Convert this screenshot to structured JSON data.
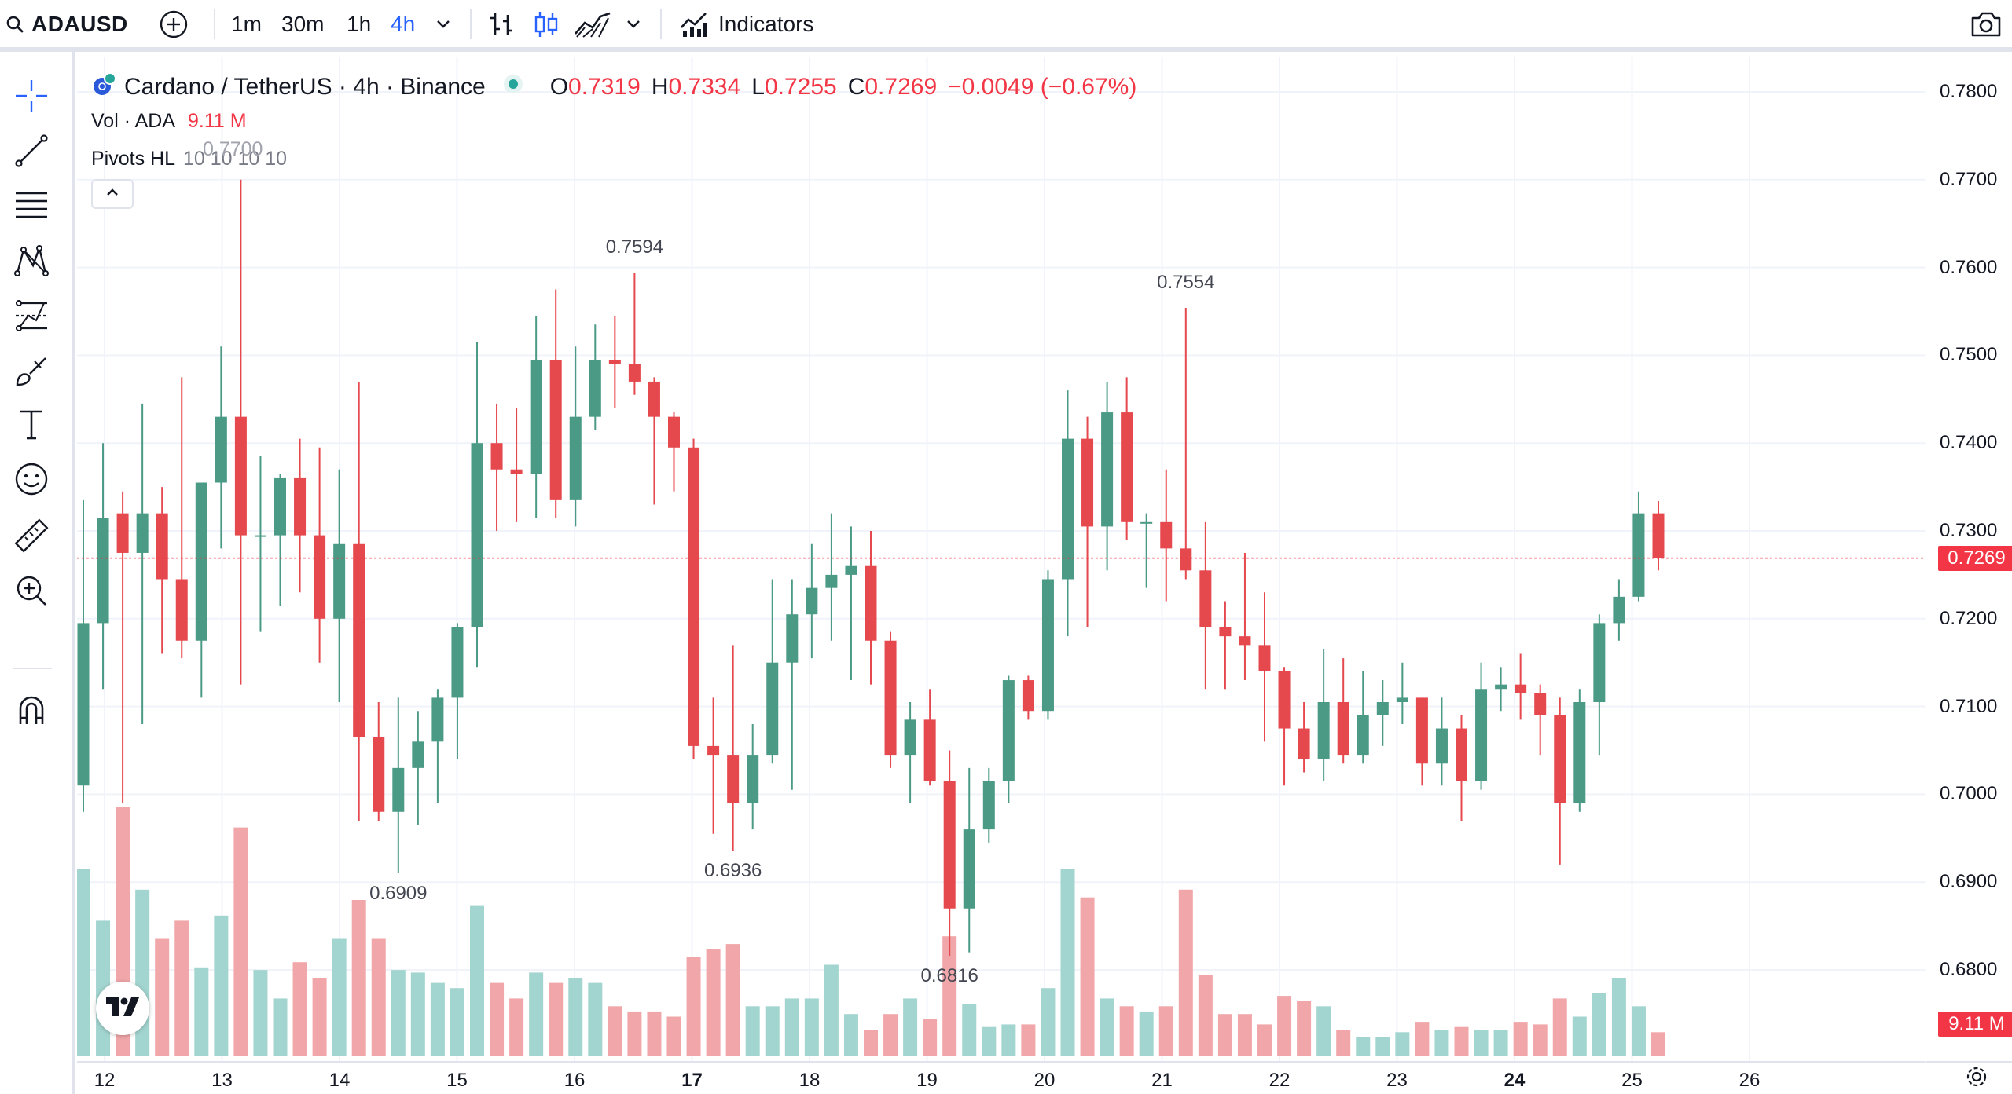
{
  "toolbar": {
    "symbol": "ADAUSD",
    "timeframes": [
      "1m",
      "30m",
      "1h",
      "4h"
    ],
    "active_timeframe": "4h",
    "indicators_label": "Indicators",
    "icons": [
      "search-icon",
      "add-compare-icon",
      "chevron-down-icon",
      "bar-style-icon",
      "candle-style-icon",
      "area-style-icon",
      "chevron-down-icon",
      "indicators-icon",
      "camera-icon"
    ]
  },
  "left_tools": [
    "crosshair-icon",
    "trend-line-icon",
    "fib-levels-icon",
    "pattern-icon",
    "projection-icon",
    "brush-icon",
    "text-icon",
    "emoji-icon",
    "ruler-icon",
    "zoom-in-icon",
    "magnet-icon"
  ],
  "legend": {
    "title": "Cardano / TetherUS · 4h · Binance",
    "o_key": "O",
    "o": "0.7319",
    "h_key": "H",
    "h": "0.7334",
    "l_key": "L",
    "l": "0.7255",
    "c_key": "C",
    "c": "0.7269",
    "change": "−0.0049 (−0.67%)",
    "vol_label": "Vol · ADA",
    "vol_value": "9.11 M",
    "pivots_label": "Pivots HL",
    "pivots_params": "10 10 10 10",
    "pivots_overlap": "0.7700"
  },
  "colors": {
    "up": "#26a69a",
    "up_candle": "#4a9a85",
    "down": "#e5484d",
    "up_vol": "#a3d5d0",
    "down_vol": "#f1a7aa",
    "accent": "#2962ff"
  },
  "chart_data": {
    "type": "candlestick",
    "symbol": "Cardano / TetherUS",
    "interval": "4h",
    "exchange": "Binance",
    "price_axis": [
      "0.7800",
      "0.7700",
      "0.7600",
      "0.7500",
      "0.7400",
      "0.7300",
      "0.7200",
      "0.7100",
      "0.7000",
      "0.6900",
      "0.6800"
    ],
    "ylim": [
      0.677,
      0.783
    ],
    "current_price": "0.7269",
    "current_volume": "9.11 M",
    "date_axis": [
      "12",
      "13",
      "14",
      "15",
      "16",
      "17",
      "18",
      "19",
      "20",
      "21",
      "22",
      "23",
      "24",
      "25",
      "26"
    ],
    "bold_dates": [
      "17",
      "24"
    ],
    "pivots": [
      {
        "label": "0.7594",
        "bar": 28,
        "pos": "high"
      },
      {
        "label": "0.7554",
        "bar": 56,
        "pos": "high"
      },
      {
        "label": "0.6909",
        "bar": 16,
        "pos": "low"
      },
      {
        "label": "0.6936",
        "bar": 33,
        "pos": "low"
      },
      {
        "label": "0.6816",
        "bar": 44,
        "pos": "low"
      }
    ],
    "candles": [
      [
        0.701,
        0.7335,
        0.698,
        0.7195,
        0.72
      ],
      [
        0.7195,
        0.74,
        0.712,
        0.7315,
        0.52
      ],
      [
        0.732,
        0.7345,
        0.699,
        0.7275,
        0.96
      ],
      [
        0.7275,
        0.7445,
        0.708,
        0.732,
        0.64
      ],
      [
        0.732,
        0.735,
        0.716,
        0.7245,
        0.45
      ],
      [
        0.7245,
        0.7475,
        0.7155,
        0.7175,
        0.52
      ],
      [
        0.7175,
        0.7355,
        0.711,
        0.7355,
        0.34
      ],
      [
        0.7355,
        0.751,
        0.728,
        0.743,
        0.54
      ],
      [
        0.743,
        0.77,
        0.7125,
        0.7295,
        0.88
      ],
      [
        0.7295,
        0.7385,
        0.7185,
        0.7295,
        0.33
      ],
      [
        0.7295,
        0.7365,
        0.7215,
        0.736,
        0.22
      ],
      [
        0.736,
        0.7405,
        0.723,
        0.7295,
        0.36
      ],
      [
        0.7295,
        0.7395,
        0.715,
        0.72,
        0.3
      ],
      [
        0.72,
        0.737,
        0.7105,
        0.7285,
        0.45
      ],
      [
        0.7285,
        0.747,
        0.697,
        0.7065,
        0.6
      ],
      [
        0.7065,
        0.7105,
        0.697,
        0.698,
        0.45
      ],
      [
        0.698,
        0.711,
        0.691,
        0.703,
        0.33
      ],
      [
        0.703,
        0.7095,
        0.6965,
        0.706,
        0.32
      ],
      [
        0.706,
        0.712,
        0.699,
        0.711,
        0.28
      ],
      [
        0.711,
        0.7195,
        0.704,
        0.719,
        0.26
      ],
      [
        0.719,
        0.7515,
        0.7145,
        0.74,
        0.58
      ],
      [
        0.74,
        0.7445,
        0.73,
        0.737,
        0.28
      ],
      [
        0.737,
        0.744,
        0.731,
        0.7365,
        0.22
      ],
      [
        0.7365,
        0.7545,
        0.7315,
        0.7495,
        0.32
      ],
      [
        0.7495,
        0.7575,
        0.7315,
        0.7335,
        0.28
      ],
      [
        0.7335,
        0.751,
        0.7305,
        0.743,
        0.3
      ],
      [
        0.743,
        0.7535,
        0.7415,
        0.7495,
        0.28
      ],
      [
        0.7495,
        0.7545,
        0.744,
        0.749,
        0.19
      ],
      [
        0.749,
        0.7594,
        0.7455,
        0.747,
        0.17
      ],
      [
        0.747,
        0.7475,
        0.733,
        0.743,
        0.17
      ],
      [
        0.743,
        0.7435,
        0.7345,
        0.7395,
        0.15
      ],
      [
        0.7395,
        0.7405,
        0.704,
        0.7055,
        0.38
      ],
      [
        0.7055,
        0.711,
        0.6955,
        0.7045,
        0.41
      ],
      [
        0.7045,
        0.717,
        0.6936,
        0.699,
        0.43
      ],
      [
        0.699,
        0.708,
        0.696,
        0.7045,
        0.19
      ],
      [
        0.7045,
        0.7245,
        0.7035,
        0.715,
        0.19
      ],
      [
        0.715,
        0.7245,
        0.7005,
        0.7205,
        0.22
      ],
      [
        0.7205,
        0.7285,
        0.7155,
        0.7235,
        0.22
      ],
      [
        0.7235,
        0.732,
        0.7175,
        0.725,
        0.35
      ],
      [
        0.725,
        0.7305,
        0.713,
        0.726,
        0.16
      ],
      [
        0.726,
        0.73,
        0.7125,
        0.7175,
        0.1
      ],
      [
        0.7175,
        0.7185,
        0.703,
        0.7045,
        0.16
      ],
      [
        0.7045,
        0.7105,
        0.699,
        0.7085,
        0.22
      ],
      [
        0.7085,
        0.712,
        0.701,
        0.7015,
        0.14
      ],
      [
        0.7015,
        0.705,
        0.6816,
        0.687,
        0.46
      ],
      [
        0.687,
        0.703,
        0.682,
        0.696,
        0.2
      ],
      [
        0.696,
        0.703,
        0.6945,
        0.7015,
        0.11
      ],
      [
        0.7015,
        0.7135,
        0.699,
        0.713,
        0.12
      ],
      [
        0.713,
        0.7135,
        0.7085,
        0.7095,
        0.12
      ],
      [
        0.7095,
        0.7255,
        0.7085,
        0.7245,
        0.26
      ],
      [
        0.7245,
        0.746,
        0.718,
        0.7405,
        0.72
      ],
      [
        0.7405,
        0.743,
        0.719,
        0.7305,
        0.61
      ],
      [
        0.7305,
        0.747,
        0.7255,
        0.7435,
        0.22
      ],
      [
        0.7435,
        0.7475,
        0.729,
        0.731,
        0.19
      ],
      [
        0.731,
        0.732,
        0.7235,
        0.731,
        0.17
      ],
      [
        0.731,
        0.737,
        0.722,
        0.728,
        0.19
      ],
      [
        0.728,
        0.7554,
        0.7245,
        0.7255,
        0.64
      ],
      [
        0.7255,
        0.731,
        0.712,
        0.719,
        0.31
      ],
      [
        0.719,
        0.722,
        0.712,
        0.718,
        0.16
      ],
      [
        0.718,
        0.7275,
        0.713,
        0.717,
        0.16
      ],
      [
        0.717,
        0.723,
        0.706,
        0.714,
        0.12
      ],
      [
        0.714,
        0.7145,
        0.701,
        0.7075,
        0.23
      ],
      [
        0.7075,
        0.7105,
        0.7025,
        0.704,
        0.21
      ],
      [
        0.704,
        0.7165,
        0.7015,
        0.7105,
        0.19
      ],
      [
        0.7105,
        0.7155,
        0.7035,
        0.7045,
        0.1
      ],
      [
        0.7045,
        0.714,
        0.7035,
        0.709,
        0.07
      ],
      [
        0.709,
        0.713,
        0.7055,
        0.7105,
        0.07
      ],
      [
        0.7105,
        0.715,
        0.708,
        0.711,
        0.09
      ],
      [
        0.711,
        0.711,
        0.701,
        0.7035,
        0.13
      ],
      [
        0.7035,
        0.711,
        0.701,
        0.7075,
        0.1
      ],
      [
        0.7075,
        0.709,
        0.697,
        0.7015,
        0.11
      ],
      [
        0.7015,
        0.715,
        0.7005,
        0.712,
        0.1
      ],
      [
        0.712,
        0.7145,
        0.7095,
        0.7125,
        0.1
      ],
      [
        0.7125,
        0.716,
        0.7085,
        0.7115,
        0.13
      ],
      [
        0.7115,
        0.7125,
        0.7045,
        0.709,
        0.12
      ],
      [
        0.709,
        0.711,
        0.692,
        0.699,
        0.22
      ],
      [
        0.699,
        0.712,
        0.698,
        0.7105,
        0.15
      ],
      [
        0.7105,
        0.7205,
        0.7045,
        0.7195,
        0.24
      ],
      [
        0.7195,
        0.7245,
        0.7175,
        0.7225,
        0.3
      ],
      [
        0.7225,
        0.7345,
        0.722,
        0.732,
        0.19
      ],
      [
        0.732,
        0.7334,
        0.7255,
        0.7269,
        0.09
      ]
    ]
  }
}
